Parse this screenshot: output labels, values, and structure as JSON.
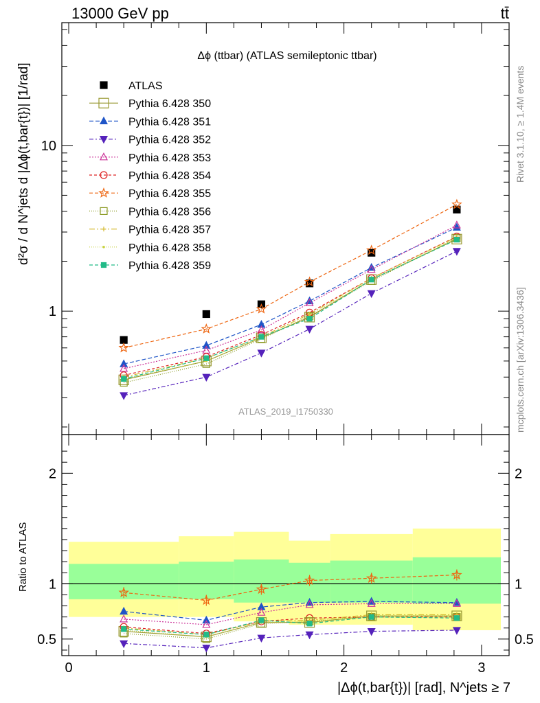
{
  "header": {
    "left": "13000 GeV pp",
    "right": "tt̄"
  },
  "side_labels": {
    "rivet": "Rivet 3.1.10, ≥ 1.4M events",
    "mcplots": "mcplots.cern.ch [arXiv:1306.3436]"
  },
  "colors": {
    "band_inner": "#99ff99",
    "band_outer": "#ffff99",
    "data": "#000000"
  },
  "chart_data": [
    {
      "type": "scatter",
      "title": "Δϕ (ttbar) (ATLAS semileptonic ttbar)",
      "ylabel": "d²σ / d N^jets d |Δϕ(t,bar{t})| [1/rad]",
      "xlabel": "|Δϕ(t,bar{t})| [rad], N^jets ≥ 7",
      "watermark": "ATLAS_2019_I1750330",
      "y_scale": "log",
      "ylim": [
        0.18,
        55
      ],
      "xlim": [
        -0.05,
        3.2
      ],
      "y_ticks": [
        "1",
        "10"
      ],
      "x_ticks": [
        "0",
        "1",
        "2",
        "3"
      ],
      "legend_position": "top-left",
      "x": [
        0.4,
        1.0,
        1.4,
        1.75,
        2.2,
        2.82
      ],
      "bin_edges": [
        0,
        0.8,
        1.2,
        1.6,
        1.9,
        2.5,
        3.14
      ],
      "series": [
        {
          "name": "ATLAS",
          "color": "#000000",
          "marker": "square-filled",
          "dash": "",
          "values": [
            0.67,
            0.96,
            1.1,
            1.47,
            2.25,
            4.1
          ]
        },
        {
          "name": "Pythia 6.428 350",
          "color": "#999933",
          "marker": "square-open-big",
          "dash": "",
          "values": [
            0.385,
            0.5,
            0.69,
            0.92,
            1.55,
            2.72
          ]
        },
        {
          "name": "Pythia 6.428 351",
          "color": "#1f55c7",
          "marker": "triangle-up-filled",
          "dash": "6,3",
          "values": [
            0.48,
            0.62,
            0.83,
            1.15,
            1.83,
            3.2
          ]
        },
        {
          "name": "Pythia 6.428 352",
          "color": "#5522bb",
          "marker": "triangle-down-filled",
          "dash": "6,3,2,3",
          "values": [
            0.31,
            0.4,
            0.56,
            0.78,
            1.28,
            2.3
          ]
        },
        {
          "name": "Pythia 6.428 353",
          "color": "#cc3399",
          "marker": "triangle-up-open",
          "dash": "2,2",
          "values": [
            0.45,
            0.58,
            0.77,
            1.12,
            1.78,
            3.3
          ]
        },
        {
          "name": "Pythia 6.428 354",
          "color": "#dd2222",
          "marker": "circle-open",
          "dash": "4,3",
          "values": [
            0.41,
            0.53,
            0.72,
            0.98,
            1.58,
            2.82
          ]
        },
        {
          "name": "Pythia 6.428 355",
          "color": "#ee6611",
          "marker": "star-open",
          "dash": "5,3",
          "values": [
            0.6,
            0.78,
            1.03,
            1.5,
            2.33,
            4.4
          ]
        },
        {
          "name": "Pythia 6.428 356",
          "color": "#8a9a22",
          "marker": "square-open",
          "dash": "1,2",
          "values": [
            0.37,
            0.48,
            0.68,
            0.93,
            1.52,
            2.75
          ]
        },
        {
          "name": "Pythia 6.428 357",
          "color": "#d4b82a",
          "marker": "cross-small",
          "dash": "8,3,2,3",
          "values": [
            0.4,
            0.52,
            0.7,
            0.96,
            1.58,
            2.8
          ]
        },
        {
          "name": "Pythia 6.428 358",
          "color": "#c8d240",
          "marker": "dot",
          "dash": "1,2",
          "values": [
            0.39,
            0.5,
            0.69,
            0.94,
            1.55,
            2.75
          ]
        },
        {
          "name": "Pythia 6.428 359",
          "color": "#22bb88",
          "marker": "square-small-filled",
          "dash": "5,3",
          "values": [
            0.39,
            0.52,
            0.7,
            0.9,
            1.55,
            2.7
          ]
        }
      ]
    },
    {
      "type": "scatter",
      "title": "",
      "ylabel": "Ratio to ATLAS",
      "xlabel": "|Δϕ(t,bar{t})| [rad], N^jets ≥ 7",
      "ylim": [
        0.35,
        2.35
      ],
      "xlim": [
        -0.05,
        3.2
      ],
      "y_ticks": [
        "0.5",
        "1",
        "2"
      ],
      "reference_line": 1,
      "bands": {
        "bin_edges": [
          0,
          0.8,
          1.2,
          1.6,
          1.9,
          2.5,
          3.14
        ],
        "inner_low": [
          0.86,
          0.86,
          0.83,
          0.83,
          0.83,
          0.82
        ],
        "inner_high": [
          1.18,
          1.2,
          1.22,
          1.19,
          1.21,
          1.24
        ],
        "outer_low": [
          0.7,
          0.7,
          0.66,
          0.63,
          0.63,
          0.58
        ],
        "outer_high": [
          1.38,
          1.43,
          1.47,
          1.39,
          1.45,
          1.5
        ]
      },
      "x": [
        0.4,
        1.0,
        1.4,
        1.75,
        2.2,
        2.82
      ],
      "series": [
        {
          "name": "Pythia 6.428 350",
          "values": [
            0.57,
            0.52,
            0.65,
            0.65,
            0.71,
            0.71
          ]
        },
        {
          "name": "Pythia 6.428 351",
          "values": [
            0.75,
            0.67,
            0.79,
            0.83,
            0.84,
            0.83
          ]
        },
        {
          "name": "Pythia 6.428 352",
          "values": [
            0.46,
            0.42,
            0.51,
            0.54,
            0.57,
            0.58
          ]
        },
        {
          "name": "Pythia 6.428 353",
          "values": [
            0.68,
            0.63,
            0.74,
            0.81,
            0.82,
            0.82
          ]
        },
        {
          "name": "Pythia 6.428 354",
          "values": [
            0.61,
            0.55,
            0.66,
            0.69,
            0.7,
            0.7
          ]
        },
        {
          "name": "Pythia 6.428 355",
          "values": [
            0.92,
            0.85,
            0.95,
            1.03,
            1.05,
            1.08
          ]
        },
        {
          "name": "Pythia 6.428 356",
          "values": [
            0.55,
            0.5,
            0.64,
            0.66,
            0.7,
            0.7
          ]
        },
        {
          "name": "Pythia 6.428 357",
          "values": [
            0.6,
            0.54,
            0.66,
            0.67,
            0.72,
            0.72
          ]
        },
        {
          "name": "Pythia 6.428 358",
          "values": [
            0.58,
            0.52,
            0.65,
            0.66,
            0.71,
            0.71
          ]
        },
        {
          "name": "Pythia 6.428 359",
          "values": [
            0.59,
            0.54,
            0.67,
            0.64,
            0.7,
            0.69
          ]
        }
      ]
    }
  ]
}
